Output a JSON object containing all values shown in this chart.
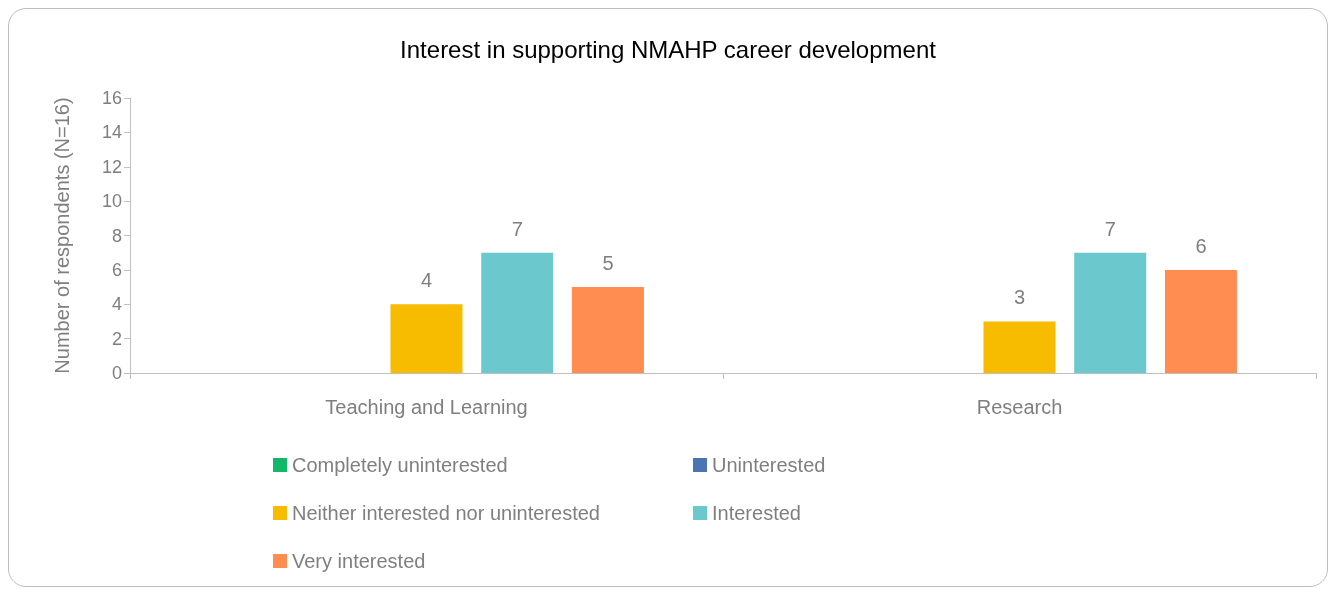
{
  "chart_data": {
    "type": "bar",
    "title": "Interest in supporting NMAHP career development",
    "ylabel": "Number of respondents (N=16)",
    "categories": [
      "Teaching and Learning",
      "Research"
    ],
    "series": [
      {
        "name": "Completely uninterested",
        "color": "#12b76a",
        "values": [
          0,
          0
        ],
        "value_labels": [
          null,
          null
        ]
      },
      {
        "name": "Uninterested",
        "color": "#4a74b4",
        "values": [
          0,
          0
        ],
        "value_labels": [
          null,
          null
        ]
      },
      {
        "name": "Neither interested nor uninterested",
        "color": "#f7bb00",
        "values": [
          4,
          3
        ],
        "value_labels": [
          "4",
          "3"
        ]
      },
      {
        "name": "Interested",
        "color": "#6bc8cc",
        "values": [
          7,
          7
        ],
        "value_labels": [
          "7",
          "7"
        ]
      },
      {
        "name": "Very interested",
        "color": "#ff8c50",
        "values": [
          5,
          6
        ],
        "value_labels": [
          "5",
          "6"
        ]
      }
    ],
    "ylim": [
      0,
      16
    ],
    "yticks": [
      0,
      2,
      4,
      6,
      8,
      10,
      12,
      14,
      16
    ],
    "grid": false,
    "legend": "bottom"
  }
}
